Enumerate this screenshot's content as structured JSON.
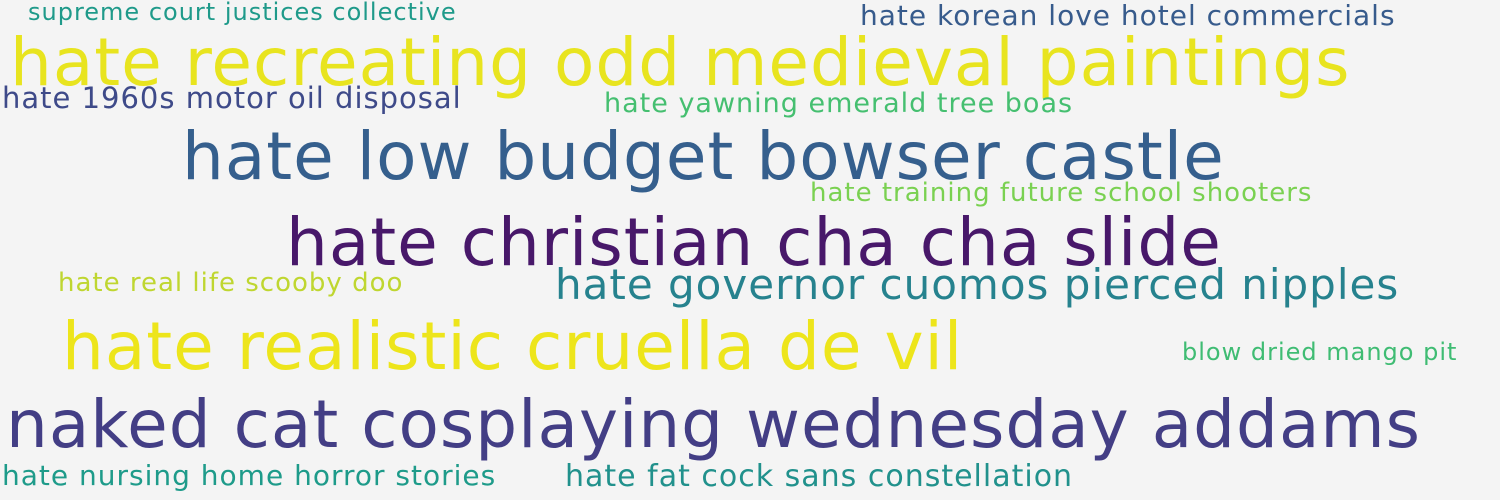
{
  "words": [
    "supreme court justices collective",
    "hate korean love hotel commercials",
    "hate recreating odd medieval paintings",
    "hate 1960s motor oil disposal",
    "hate yawning emerald tree boas",
    "hate low budget bowser castle",
    "hate training future school shooters",
    "hate christian cha cha slide",
    "hate real life scooby doo",
    "hate governor cuomos pierced nipples",
    "hate realistic cruella de vil",
    "blow dried mango pit",
    "naked cat cosplaying wednesday addams",
    "hate nursing home horror stories",
    "hate fat cock sans constellation"
  ]
}
